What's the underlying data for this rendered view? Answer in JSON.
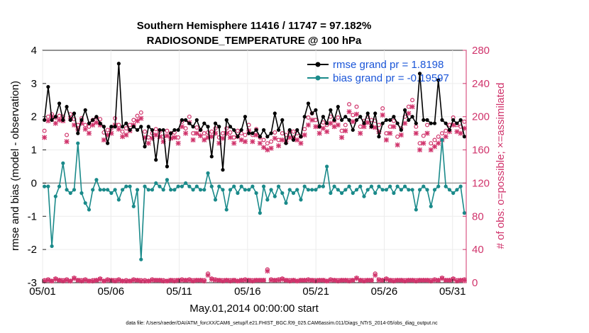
{
  "chart_data": {
    "type": "line",
    "title": "Southern Hemisphere 11416 / 11747 = 97.182%",
    "subtitle": "RADIOSONDE_TEMPERATURE @ 100 hPa",
    "xlabel": "May.01,2014 00:00:00 start",
    "ylabel_left": "rmse and bias (model - observation)",
    "ylabel_right": "# of obs: o=possible; ×=assimilated",
    "footnote": "data file: /Users/raeder/DAI/ATM_forcXX/CAM6_setup/f.e21.FHIST_BGC.f09_025.CAM6assim.011/Diags_NTrS_2014-05/obs_diag_output.nc",
    "x_ticks": [
      "05/01",
      "05/06",
      "05/11",
      "05/16",
      "05/21",
      "05/26",
      "05/31"
    ],
    "xlim_days": [
      1,
      32
    ],
    "ylim_left": [
      -3,
      4
    ],
    "ylim_right": [
      0,
      280
    ],
    "yticks_left": [
      "-3",
      "-2",
      "-1",
      "0",
      "1",
      "2",
      "3",
      "4"
    ],
    "yticks_right": [
      "0",
      "40",
      "80",
      "120",
      "160",
      "200",
      "240",
      "280"
    ],
    "grid": true,
    "legend_position": "top-right",
    "colors": {
      "rmse": "#000000",
      "bias": "#1a8a8a",
      "obs": "#d0336b",
      "legend_text": "#1a55d8",
      "zero_line": "#999999"
    },
    "series": [
      {
        "name": "rmse grand pr = 1.8198",
        "axis": "left",
        "values": [
          1.9,
          2.9,
          1.9,
          2.0,
          2.4,
          1.9,
          2.3,
          1.9,
          2.1,
          1.5,
          1.9,
          2.2,
          1.8,
          1.9,
          2.0,
          1.8,
          1.7,
          1.2,
          1.7,
          1.7,
          3.6,
          1.7,
          1.8,
          1.6,
          1.7,
          1.6,
          1.7,
          1.1,
          1.7,
          1.6,
          0.7,
          1.6,
          1.6,
          0.5,
          1.5,
          1.6,
          1.6,
          1.9,
          1.9,
          1.8,
          1.7,
          1.9,
          1.6,
          1.8,
          1.7,
          0.8,
          1.8,
          1.7,
          0.4,
          1.9,
          1.7,
          1.6,
          1.4,
          1.6,
          2.0,
          1.5,
          1.5,
          1.6,
          1.4,
          1.6,
          1.4,
          1.5,
          2.1,
          1.6,
          1.9,
          1.2,
          1.6,
          1.3,
          1.6,
          1.4,
          2.0,
          2.4,
          2.1,
          2.2,
          1.7,
          2.0,
          1.8,
          2.2,
          1.9,
          2.3,
          1.9,
          2.0,
          1.9,
          1.6,
          1.9,
          2.0,
          1.8,
          2.1,
          1.7,
          2.1,
          1.4,
          1.8,
          1.9,
          1.9,
          2.0,
          1.8,
          1.6,
          2.2,
          1.9,
          2.0,
          1.8,
          3.3,
          1.9,
          1.9,
          1.8,
          1.8,
          3.1,
          1.9,
          1.8,
          1.6,
          1.9,
          1.8,
          1.9,
          1.4
        ]
      },
      {
        "name": "bias grand pr = -0.19597",
        "axis": "left",
        "values": [
          -0.1,
          -0.1,
          -1.9,
          -0.4,
          -0.1,
          0.6,
          -0.2,
          -0.3,
          -0.2,
          1.2,
          -0.3,
          -0.6,
          -0.8,
          -0.2,
          0.1,
          -0.2,
          -0.2,
          -0.2,
          -0.3,
          -0.2,
          -0.5,
          -0.2,
          -0.1,
          -0.1,
          -0.7,
          -0.2,
          -2.3,
          -0.1,
          -0.2,
          -0.2,
          0.0,
          -0.1,
          -0.2,
          0.1,
          -0.2,
          -0.2,
          -0.1,
          -0.1,
          0.0,
          -0.1,
          -0.2,
          -0.1,
          -0.2,
          -0.2,
          0.3,
          -0.1,
          -0.5,
          -0.1,
          -0.2,
          -0.8,
          -0.2,
          -0.1,
          -0.3,
          -0.1,
          -0.2,
          -0.2,
          -0.1,
          -0.3,
          -0.9,
          -0.1,
          -0.5,
          -0.2,
          -0.4,
          -0.1,
          -0.3,
          -0.6,
          -0.2,
          -0.3,
          -0.2,
          -0.5,
          -0.1,
          -0.2,
          -0.2,
          -0.2,
          -0.1,
          -0.1,
          0.5,
          -0.3,
          -0.1,
          -0.2,
          -0.3,
          -0.2,
          -0.1,
          -0.3,
          -0.2,
          -0.1,
          -0.4,
          -0.2,
          -0.1,
          -0.3,
          -0.1,
          -0.2,
          -0.2,
          -0.1,
          -0.3,
          -0.1,
          -0.2,
          -0.1,
          -0.2,
          -0.2,
          -0.8,
          -0.2,
          -0.1,
          -0.2,
          -0.7,
          -0.2,
          -0.1,
          1.3,
          -0.1,
          -0.2,
          -0.3,
          -0.2,
          -0.1,
          -0.9
        ]
      },
      {
        "name": "# of obs possible",
        "axis": "right",
        "marker": "o",
        "values": [
          183,
          200,
          203,
          199,
          201,
          200,
          178,
          203,
          197,
          190,
          198,
          190,
          188,
          196,
          199,
          197,
          181,
          184,
          186,
          198,
          190,
          182,
          186,
          190,
          196,
          201,
          205,
          182,
          175,
          180,
          185,
          182,
          176,
          183,
          180,
          181,
          175,
          194,
          186,
          200,
          180,
          187,
          184,
          180,
          181,
          182,
          186,
          175,
          180,
          186,
          181,
          175,
          183,
          180,
          178,
          190,
          178,
          185,
          175,
          172,
          168,
          170,
          181,
          172,
          180,
          178,
          182,
          182,
          180,
          176,
          185,
          199,
          204,
          196,
          188,
          193,
          190,
          200,
          195,
          199,
          183,
          190,
          215,
          202,
          212,
          188,
          195,
          200,
          196,
          195,
          190,
          210,
          180,
          188,
          195,
          176,
          186,
          200,
          212,
          220,
          188,
          168,
          177,
          190,
          168,
          172,
          176,
          180,
          183,
          190,
          199,
          190,
          188,
          194
        ]
      },
      {
        "name": "# of obs assimilated",
        "axis": "right",
        "marker": "x",
        "values": [
          175,
          195,
          200,
          192,
          196,
          195,
          170,
          198,
          190,
          185,
          192,
          185,
          180,
          190,
          193,
          190,
          172,
          178,
          180,
          190,
          185,
          176,
          178,
          183,
          190,
          195,
          198,
          175,
          168,
          174,
          178,
          176,
          170,
          177,
          174,
          175,
          168,
          188,
          180,
          193,
          172,
          180,
          177,
          172,
          175,
          176,
          180,
          168,
          174,
          180,
          175,
          168,
          176,
          172,
          170,
          183,
          170,
          178,
          168,
          163,
          160,
          162,
          174,
          165,
          172,
          170,
          175,
          175,
          172,
          168,
          178,
          190,
          196,
          188,
          180,
          186,
          182,
          192,
          188,
          190,
          175,
          183,
          206,
          194,
          203,
          180,
          188,
          193,
          188,
          187,
          182,
          202,
          172,
          180,
          188,
          166,
          178,
          192,
          204,
          212,
          180,
          160,
          168,
          180,
          160,
          164,
          168,
          172,
          176,
          182,
          190,
          182,
          180,
          186
        ]
      }
    ],
    "obs_low": {
      "possible": [
        3,
        4,
        2,
        5,
        3,
        3,
        4,
        2,
        6,
        3,
        3,
        4,
        2,
        3,
        3,
        5,
        2,
        4,
        3,
        3,
        4,
        2,
        3,
        2,
        4,
        3,
        3,
        3,
        2,
        4,
        3,
        3,
        3,
        2,
        3,
        3,
        3,
        4,
        3,
        4,
        3,
        3,
        3,
        3,
        11,
        5,
        4,
        3,
        3,
        3,
        3,
        3,
        2,
        3,
        4,
        3,
        3,
        3,
        3,
        3,
        16,
        4,
        3,
        4,
        5,
        3,
        3,
        3,
        2,
        3,
        3,
        4,
        3,
        3,
        3,
        3,
        2,
        4,
        3,
        3,
        3,
        3,
        3,
        3,
        6,
        3,
        3,
        3,
        3,
        11,
        4,
        3,
        5,
        3,
        3,
        3,
        3,
        3,
        3,
        3,
        3,
        3,
        3,
        3,
        3,
        4,
        3,
        6,
        3,
        3,
        5,
        3,
        3,
        4
      ],
      "assimilated": [
        2,
        3,
        2,
        4,
        3,
        2,
        3,
        2,
        5,
        3,
        2,
        3,
        2,
        2,
        3,
        4,
        2,
        3,
        3,
        2,
        3,
        2,
        2,
        2,
        3,
        3,
        2,
        2,
        2,
        3,
        3,
        3,
        2,
        2,
        3,
        2,
        3,
        3,
        3,
        3,
        2,
        3,
        3,
        2,
        9,
        4,
        3,
        3,
        2,
        3,
        2,
        3,
        2,
        3,
        3,
        3,
        2,
        3,
        3,
        3,
        14,
        3,
        3,
        3,
        4,
        3,
        2,
        3,
        2,
        3,
        3,
        3,
        3,
        2,
        3,
        3,
        2,
        3,
        3,
        2,
        3,
        3,
        2,
        3,
        5,
        3,
        2,
        3,
        3,
        9,
        3,
        3,
        4,
        3,
        2,
        3,
        3,
        2,
        3,
        3,
        2,
        3,
        3,
        3,
        2,
        3,
        3,
        5,
        3,
        3,
        4,
        2,
        3,
        3
      ]
    },
    "legend": [
      {
        "label": "rmse grand pr = 1.8198",
        "color": "#000000"
      },
      {
        "label": "bias grand pr = -0.19597",
        "color": "#1a8a8a"
      }
    ]
  }
}
